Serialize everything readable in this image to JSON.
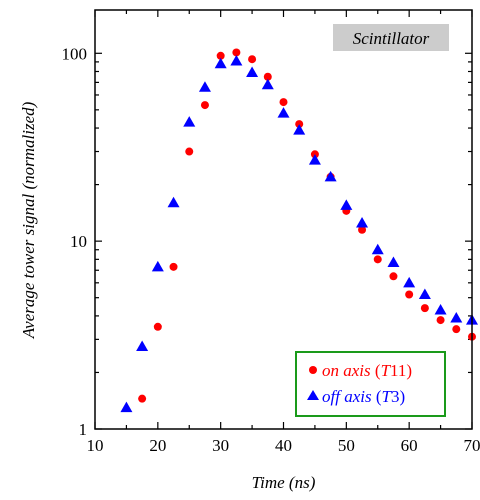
{
  "chart_data": {
    "type": "scatter",
    "xlabel": "Time (ns)",
    "ylabel": "Average tower signal (normalized)",
    "xlim": [
      10,
      70
    ],
    "ylim": [
      1,
      170
    ],
    "yscale": "log",
    "xticks": [
      10,
      20,
      30,
      40,
      50,
      60,
      70
    ],
    "yticks": [
      1,
      10,
      100
    ],
    "annotation": "Scintillator",
    "legend_position": "bottom-right",
    "series": [
      {
        "name": "on axis (T11)",
        "label_main": "on axis",
        "label_paren_open": " (",
        "label_sym": "T",
        "label_num": "11",
        "label_paren_close": ")",
        "color": "#ff0000",
        "marker": "circle",
        "x": [
          17.5,
          20,
          22.5,
          25,
          27.5,
          30,
          32.5,
          35,
          37.5,
          40,
          42.5,
          45,
          47.5,
          50,
          52.5,
          55,
          57.5,
          60,
          62.5,
          65,
          67.5,
          70
        ],
        "y": [
          1.45,
          3.5,
          7.3,
          30,
          53,
          97,
          101,
          93,
          75,
          55,
          42,
          29,
          22,
          14.5,
          11.5,
          8,
          6.5,
          5.2,
          4.4,
          3.8,
          3.4,
          3.1
        ]
      },
      {
        "name": "off axis (T3)",
        "label_main": "off axis",
        "label_paren_open": " (",
        "label_sym": "T",
        "label_num": "3",
        "label_paren_close": ")",
        "color": "#0000ff",
        "marker": "triangle",
        "x": [
          15,
          17.5,
          20,
          22.5,
          25,
          27.5,
          30,
          32.5,
          35,
          37.5,
          40,
          42.5,
          45,
          47.5,
          50,
          52.5,
          55,
          57.5,
          60,
          62.5,
          65,
          67.5,
          70
        ],
        "y": [
          1.3,
          2.75,
          7.3,
          16,
          43,
          66,
          88,
          91,
          79,
          68,
          48,
          39,
          27,
          22,
          15.5,
          12.5,
          9,
          7.7,
          6,
          5.2,
          4.3,
          3.9,
          3.8
        ]
      }
    ]
  }
}
